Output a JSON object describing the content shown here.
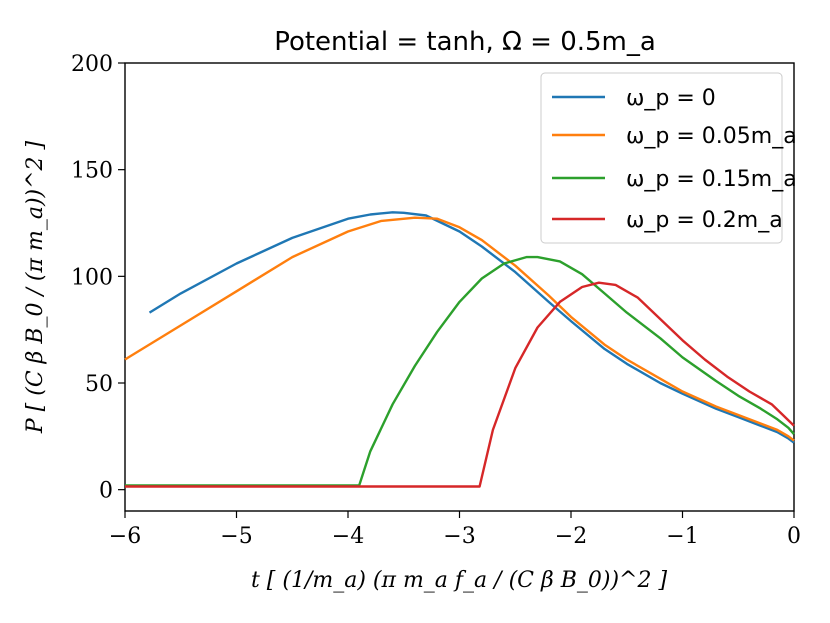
{
  "chart_data": {
    "type": "line",
    "title": "Potential = tanh, Ω = 0.5m_a",
    "xlabel": "t [ (1/m_a) (π m_a f_a / (C β B_0))^2 ]",
    "ylabel": "P [ (C β B_0 / (π m_a))^2 ]",
    "xlim": [
      -6,
      0
    ],
    "ylim": [
      -10,
      200
    ],
    "x_ticks": [
      -6,
      -5,
      -4,
      -3,
      -2,
      -1,
      0
    ],
    "x_tick_labels": [
      "−6",
      "−5",
      "−4",
      "−3",
      "−2",
      "−1",
      "0"
    ],
    "y_ticks": [
      0,
      50,
      100,
      150,
      200
    ],
    "y_tick_labels": [
      "0",
      "50",
      "100",
      "150",
      "200"
    ],
    "grid": false,
    "legend_position": "top-right",
    "series": [
      {
        "name": "ω_p = 0",
        "color": "#1f77b4",
        "x": [
          -5.78,
          -5.5,
          -5.0,
          -4.5,
          -4.0,
          -3.8,
          -3.6,
          -3.5,
          -3.3,
          -3.0,
          -2.8,
          -2.5,
          -2.2,
          -2.0,
          -1.7,
          -1.5,
          -1.2,
          -1.0,
          -0.7,
          -0.5,
          -0.3,
          -0.15,
          -0.05,
          0.0
        ],
        "y": [
          83,
          92,
          106,
          118,
          127,
          129,
          130,
          129.8,
          128.5,
          121,
          114,
          102,
          88,
          79,
          66,
          59,
          50,
          45,
          38,
          34,
          30,
          27,
          24,
          22
        ]
      },
      {
        "name": "ω_p = 0.05m_a",
        "color": "#ff7f0e",
        "x": [
          -6.0,
          -5.5,
          -5.0,
          -4.5,
          -4.0,
          -3.7,
          -3.4,
          -3.2,
          -3.0,
          -2.8,
          -2.5,
          -2.2,
          -2.0,
          -1.7,
          -1.5,
          -1.2,
          -1.0,
          -0.7,
          -0.5,
          -0.3,
          -0.15,
          -0.05,
          0.0
        ],
        "y": [
          61,
          77,
          93,
          109,
          121,
          126,
          127.5,
          127,
          123,
          117,
          105,
          91,
          81,
          68,
          61,
          52,
          46,
          39,
          35,
          31,
          28,
          25,
          23
        ]
      },
      {
        "name": "ω_p = 0.15m_a",
        "color": "#2ca02c",
        "x": [
          -6.0,
          -3.9,
          -3.8,
          -3.6,
          -3.4,
          -3.2,
          -3.0,
          -2.8,
          -2.6,
          -2.4,
          -2.3,
          -2.1,
          -1.9,
          -1.7,
          -1.5,
          -1.2,
          -1.0,
          -0.7,
          -0.5,
          -0.3,
          -0.15,
          -0.05,
          0.0
        ],
        "y": [
          2,
          2,
          18,
          40,
          58,
          74,
          88,
          99,
          106,
          109,
          109,
          107,
          101,
          92,
          83,
          71,
          62,
          51,
          44,
          38,
          33,
          29,
          26
        ]
      },
      {
        "name": "ω_p = 0.2m_a",
        "color": "#d62728",
        "x": [
          -6.0,
          -2.82,
          -2.7,
          -2.5,
          -2.3,
          -2.1,
          -1.9,
          -1.75,
          -1.6,
          -1.4,
          -1.2,
          -1.0,
          -0.8,
          -0.6,
          -0.4,
          -0.2,
          -0.1,
          0.0
        ],
        "y": [
          1.5,
          1.5,
          28,
          57,
          76,
          88,
          95,
          97,
          96,
          90,
          80,
          70,
          61,
          53,
          46,
          40,
          35,
          30
        ]
      }
    ]
  }
}
